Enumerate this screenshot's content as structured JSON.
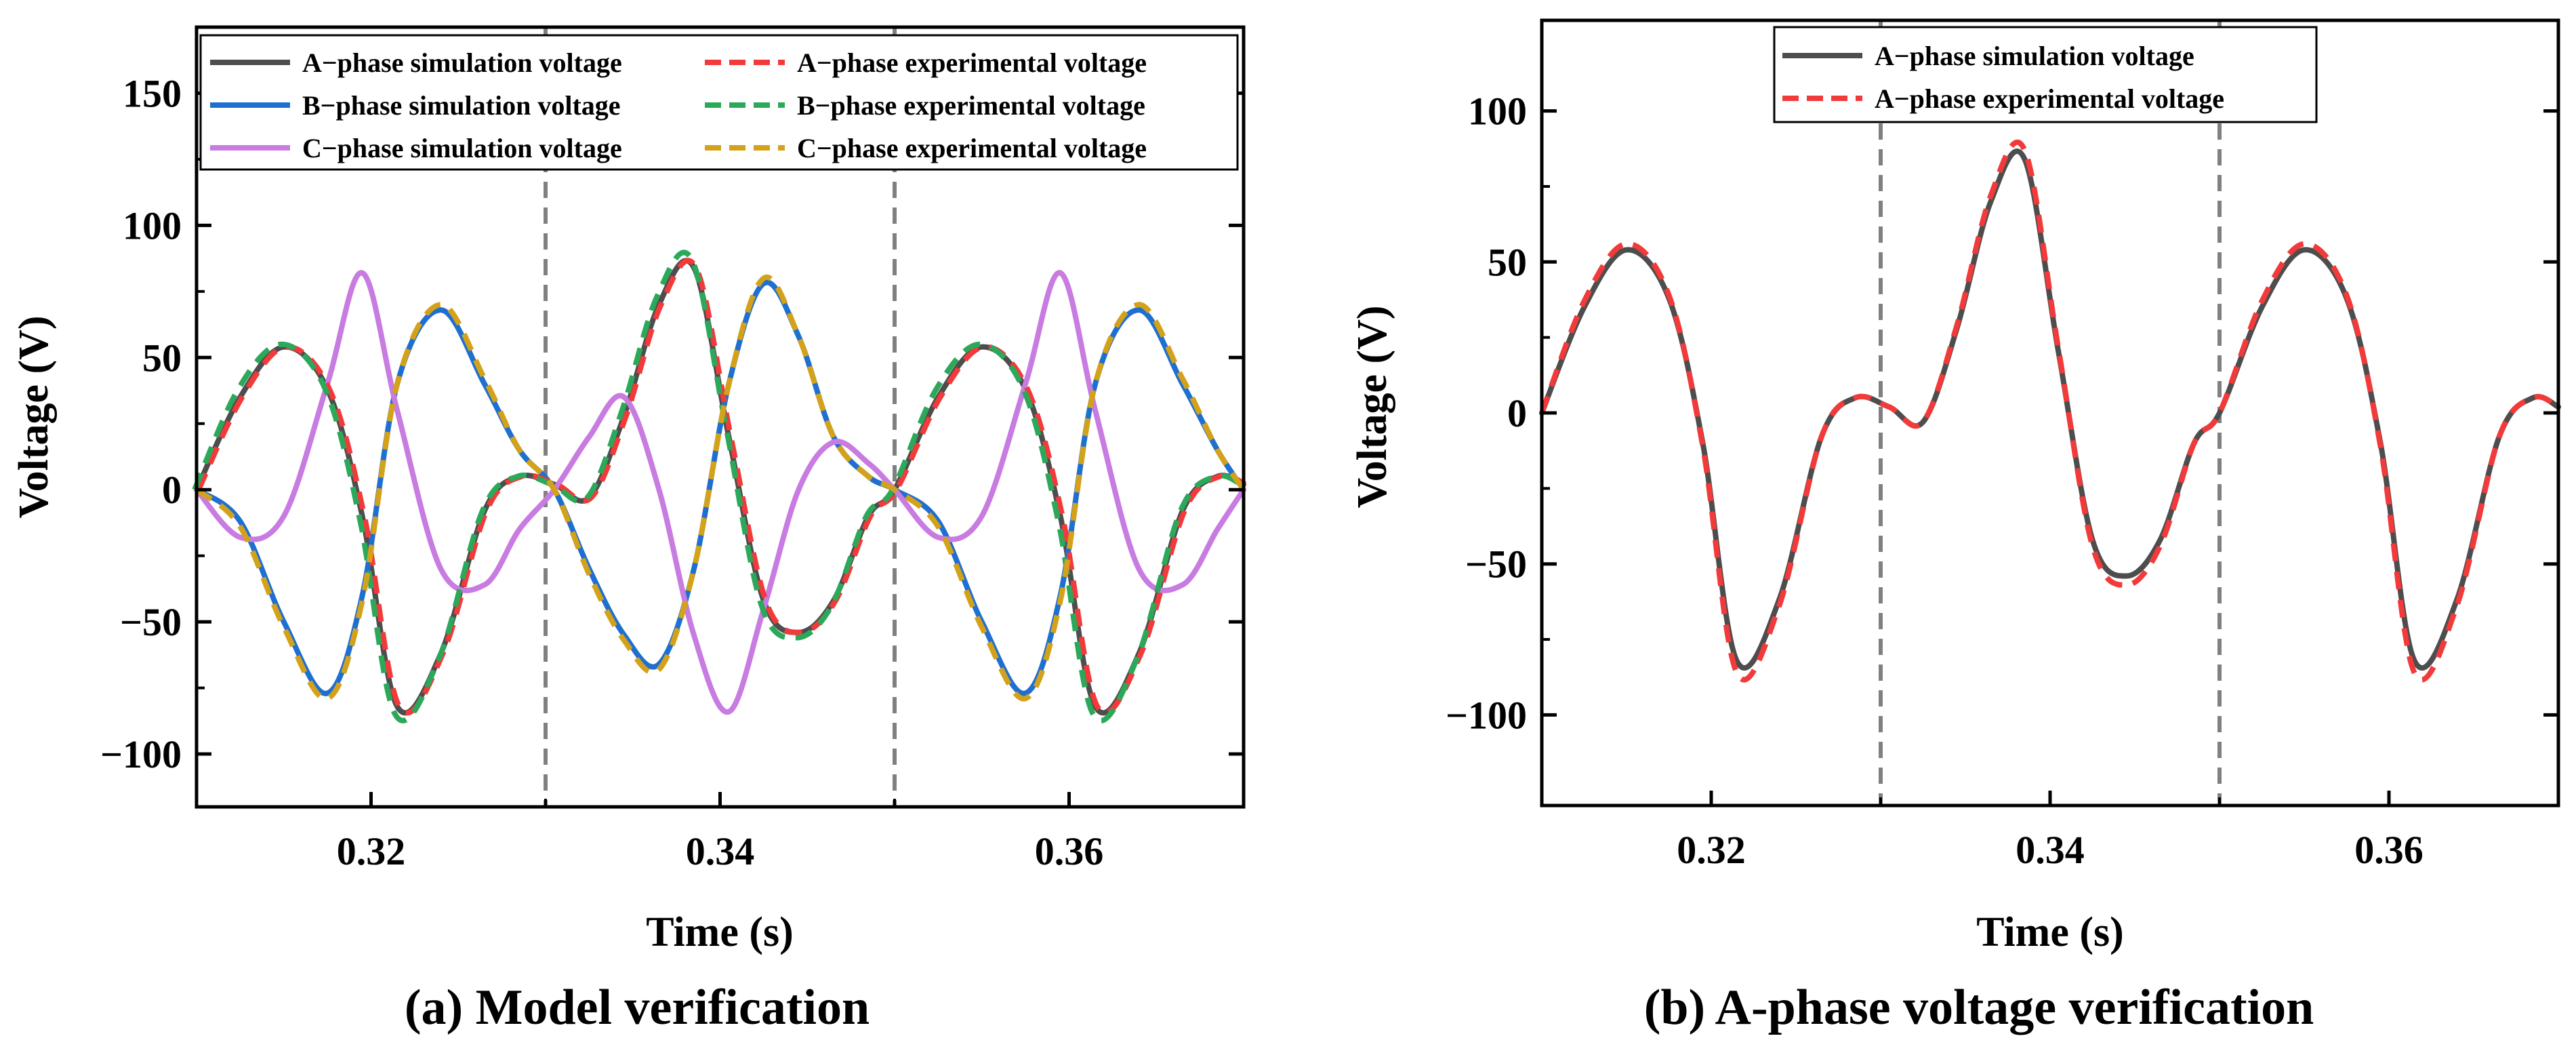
{
  "chart_data": [
    {
      "type": "line",
      "caption": "(a) Model verification",
      "xlabel": "Time (s)",
      "ylabel": "Voltage (V)",
      "xlim": [
        0.31,
        0.37
      ],
      "ylim": [
        -120,
        175
      ],
      "xticks": [
        0.32,
        0.34,
        0.36
      ],
      "xtick_labels": [
        "0.32",
        "0.34",
        "0.36"
      ],
      "yticks": [
        -100,
        -50,
        0,
        50,
        100,
        150
      ],
      "ytick_labels": [
        "−100",
        "−50",
        "0",
        "50",
        "100",
        "150"
      ],
      "vlines": [
        0.33,
        0.35
      ],
      "x": [
        0.31,
        0.3125,
        0.315,
        0.3175,
        0.3195,
        0.3215,
        0.324,
        0.3265,
        0.3285,
        0.3305,
        0.3325,
        0.3345,
        0.3365,
        0.3385,
        0.3405,
        0.3425,
        0.3445,
        0.3465,
        0.3485,
        0.35,
        0.3525,
        0.355,
        0.3575,
        0.3595,
        0.3615,
        0.364,
        0.3665,
        0.3685,
        0.37
      ],
      "series": [
        {
          "name": "A−phase simulation voltage",
          "color": "#4d4d4d",
          "dash": "solid",
          "offset": 0,
          "values": [
            0,
            35,
            54,
            38,
            -10,
            -82,
            -62,
            -8,
            5,
            2,
            -3,
            28,
            70,
            84,
            20,
            -42,
            -54,
            -42,
            -10,
            0,
            35,
            54,
            38,
            -10,
            -82,
            -62,
            -8,
            5,
            2
          ]
        },
        {
          "name": "B−phase simulation voltage",
          "color": "#1f6fd1",
          "dash": "solid",
          "offset": 0,
          "values": [
            0,
            -12,
            -50,
            -77,
            -40,
            40,
            68,
            40,
            15,
            0,
            -30,
            -55,
            -66,
            -30,
            40,
            78,
            58,
            20,
            5,
            0,
            -12,
            -50,
            -77,
            -40,
            40,
            68,
            40,
            15,
            0
          ]
        },
        {
          "name": "C−phase simulation voltage",
          "color": "#c87be0",
          "dash": "solid",
          "offset": 0,
          "values": [
            0,
            -18,
            -10,
            40,
            82,
            30,
            -30,
            -36,
            -15,
            0,
            20,
            35,
            0,
            -55,
            -84,
            -45,
            0,
            18,
            10,
            0,
            -18,
            -10,
            40,
            82,
            30,
            -30,
            -36,
            -15,
            0
          ]
        },
        {
          "name": "A−phase experimental voltage",
          "color": "#f23a3a",
          "dash": "dashed",
          "offset": 3,
          "values": [
            0,
            35,
            54,
            38,
            -10,
            -82,
            -62,
            -8,
            5,
            2,
            -3,
            28,
            70,
            84,
            20,
            -42,
            -54,
            -42,
            -10,
            0,
            35,
            54,
            38,
            -10,
            -82,
            -62,
            -8,
            5,
            2
          ]
        },
        {
          "name": "B−phase experimental voltage",
          "color": "#2ca85a",
          "dash": "dashed",
          "offset": -3,
          "values": [
            0,
            38,
            55,
            38,
            -12,
            -85,
            -64,
            -8,
            5,
            2,
            -3,
            30,
            73,
            87,
            22,
            -44,
            -56,
            -44,
            -10,
            0,
            38,
            55,
            38,
            -12,
            -85,
            -64,
            -8,
            5,
            2
          ]
        },
        {
          "name": "C−phase experimental voltage",
          "color": "#d4a21a",
          "dash": "dashed",
          "offset": 0,
          "values": [
            0,
            -14,
            -52,
            -79,
            -42,
            40,
            70,
            42,
            15,
            0,
            -32,
            -57,
            -68,
            -30,
            40,
            80,
            58,
            20,
            5,
            0,
            -14,
            -52,
            -79,
            -42,
            40,
            70,
            42,
            15,
            0
          ]
        }
      ],
      "legend_position": "top"
    },
    {
      "type": "line",
      "caption": "(b) A-phase voltage verification",
      "xlabel": "Time (s)",
      "ylabel": "Voltage (V)",
      "xlim": [
        0.31,
        0.37
      ],
      "ylim": [
        -130,
        130
      ],
      "xticks": [
        0.32,
        0.34,
        0.36
      ],
      "xtick_labels": [
        "0.32",
        "0.34",
        "0.36"
      ],
      "yticks": [
        -100,
        -50,
        0,
        50,
        100
      ],
      "ytick_labels": [
        "−100",
        "−50",
        "0",
        "50",
        "100"
      ],
      "vlines": [
        0.33,
        0.35
      ],
      "x": [
        0.31,
        0.3125,
        0.315,
        0.3175,
        0.3195,
        0.3215,
        0.324,
        0.3265,
        0.3285,
        0.3305,
        0.3325,
        0.3345,
        0.3365,
        0.3385,
        0.3405,
        0.3425,
        0.3445,
        0.3465,
        0.3485,
        0.35,
        0.3525,
        0.355,
        0.3575,
        0.3595,
        0.3615,
        0.364,
        0.3665,
        0.3685,
        0.37
      ],
      "series": [
        {
          "name": "A−phase simulation voltage",
          "color": "#4d4d4d",
          "dash": "solid",
          "offset": 0,
          "values": [
            0,
            35,
            54,
            38,
            -10,
            -82,
            -62,
            -8,
            5,
            2,
            -3,
            28,
            70,
            84,
            20,
            -42,
            -54,
            -42,
            -10,
            0,
            35,
            54,
            38,
            -10,
            -82,
            -62,
            -8,
            5,
            2
          ]
        },
        {
          "name": "A−phase experimental voltage",
          "color": "#f23a3a",
          "dash": "dashed",
          "offset": 0,
          "values": [
            0,
            37,
            56,
            39,
            -11,
            -86,
            -64,
            -8,
            5,
            2,
            -3,
            29,
            72,
            87,
            21,
            -44,
            -57,
            -44,
            -10,
            0,
            37,
            56,
            39,
            -11,
            -86,
            -64,
            -8,
            5,
            2
          ]
        }
      ],
      "legend_position": "top"
    }
  ]
}
